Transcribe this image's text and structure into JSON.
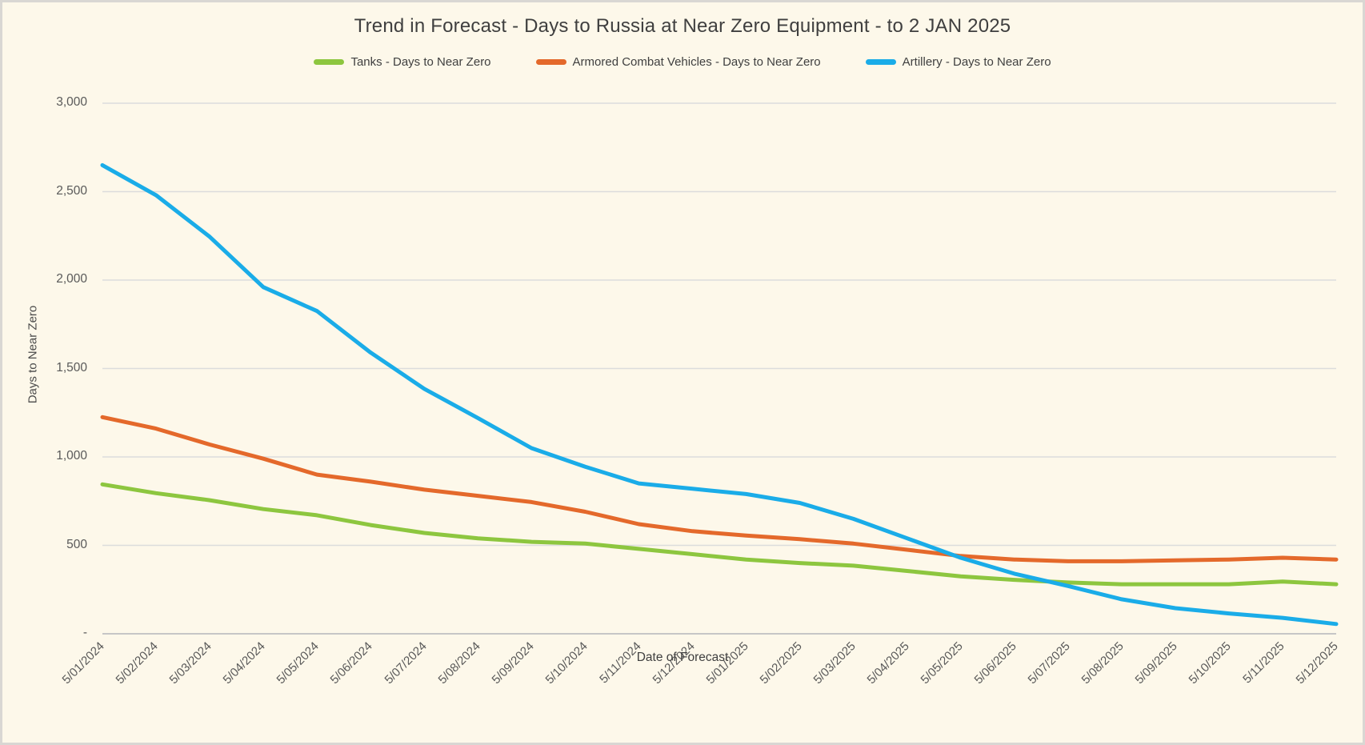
{
  "chart": {
    "background_color": "#fdf8ea",
    "gridline_color": "#dcdcdc",
    "axis_line_color": "#c6c6c6",
    "text_color": "#595959"
  },
  "chart_data": {
    "type": "line",
    "title": "Trend in Forecast - Days to Russia at Near Zero Equipment - to 2 JAN 2025",
    "xlabel": "Date of Forecast",
    "ylabel": "Days to Near Zero",
    "ylim": [
      0,
      3000
    ],
    "grid": "horizontal",
    "legend_position": "top",
    "y_tick_values": [
      3000,
      2500,
      2000,
      1500,
      1000,
      500,
      0
    ],
    "y_tick_labels": [
      "3,000",
      "2,500",
      "2,000",
      "1,500",
      "1,000",
      "500",
      "-"
    ],
    "categories": [
      "5/01/2024",
      "5/02/2024",
      "5/03/2024",
      "5/04/2024",
      "5/05/2024",
      "5/06/2024",
      "5/07/2024",
      "5/08/2024",
      "5/09/2024",
      "5/10/2024",
      "5/11/2024",
      "5/12/2024",
      "5/01/2025",
      "5/02/2025",
      "5/03/2025",
      "5/04/2025",
      "5/05/2025",
      "5/06/2025",
      "5/07/2025",
      "5/08/2025",
      "5/09/2025",
      "5/10/2025",
      "5/11/2025",
      "5/12/2025"
    ],
    "series": [
      {
        "name": "Tanks - Days to Near Zero",
        "color": "#8dc63f",
        "values": [
          845,
          795,
          755,
          705,
          670,
          615,
          570,
          540,
          520,
          510,
          480,
          450,
          420,
          400,
          385,
          355,
          325,
          305,
          290,
          280,
          280,
          280,
          295,
          280
        ]
      },
      {
        "name": "Armored Combat Vehicles - Days to Near Zero",
        "color": "#e4692b",
        "values": [
          1225,
          1160,
          1070,
          990,
          900,
          860,
          815,
          780,
          745,
          690,
          620,
          580,
          555,
          535,
          510,
          475,
          440,
          420,
          410,
          410,
          415,
          420,
          430,
          420
        ]
      },
      {
        "name": "Artillery - Days to Near Zero",
        "color": "#1aace8",
        "values": [
          2650,
          2480,
          2245,
          1960,
          1825,
          1590,
          1385,
          1220,
          1050,
          945,
          850,
          820,
          790,
          740,
          650,
          540,
          430,
          340,
          270,
          195,
          145,
          115,
          90,
          55
        ]
      }
    ]
  }
}
